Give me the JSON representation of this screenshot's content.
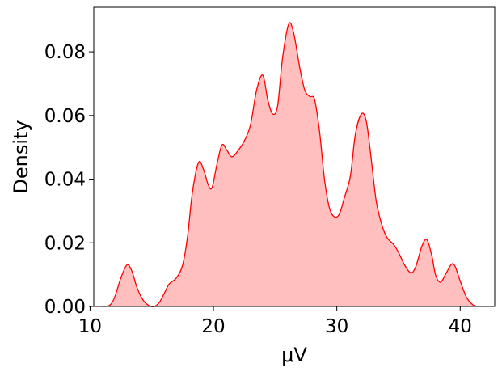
{
  "chart_data": {
    "type": "area",
    "xlabel": "μV",
    "ylabel": "Density",
    "xlim": [
      10.3,
      42.8
    ],
    "ylim": [
      0,
      0.094
    ],
    "x_ticks": [
      10,
      20,
      30,
      40
    ],
    "y_ticks": [
      0.0,
      0.02,
      0.04,
      0.06,
      0.08
    ],
    "x_tick_labels": [
      "10",
      "20",
      "30",
      "40"
    ],
    "y_tick_labels": [
      "0.00",
      "0.02",
      "0.04",
      "0.06",
      "0.08"
    ],
    "grid": false,
    "series": [
      {
        "color": "#ff0000",
        "fill": "#ffbfbf",
        "points": [
          [
            11.0,
            0.0
          ],
          [
            11.6,
            0.0004
          ],
          [
            12.0,
            0.003
          ],
          [
            12.5,
            0.009
          ],
          [
            13.0,
            0.0131
          ],
          [
            13.4,
            0.011
          ],
          [
            13.8,
            0.006
          ],
          [
            14.3,
            0.002
          ],
          [
            14.8,
            0.0002
          ],
          [
            15.2,
            0.0
          ],
          [
            15.6,
            0.0012
          ],
          [
            16.0,
            0.004
          ],
          [
            16.4,
            0.007
          ],
          [
            17.0,
            0.009
          ],
          [
            17.5,
            0.013
          ],
          [
            17.9,
            0.022
          ],
          [
            18.3,
            0.036
          ],
          [
            18.8,
            0.0453
          ],
          [
            19.2,
            0.043
          ],
          [
            19.6,
            0.038
          ],
          [
            19.9,
            0.0375
          ],
          [
            20.3,
            0.045
          ],
          [
            20.7,
            0.0508
          ],
          [
            21.1,
            0.049
          ],
          [
            21.5,
            0.047
          ],
          [
            22.0,
            0.049
          ],
          [
            22.5,
            0.052
          ],
          [
            23.0,
            0.057
          ],
          [
            23.5,
            0.068
          ],
          [
            24.0,
            0.0727
          ],
          [
            24.4,
            0.065
          ],
          [
            24.8,
            0.0605
          ],
          [
            25.2,
            0.063
          ],
          [
            25.6,
            0.078
          ],
          [
            26.1,
            0.0887
          ],
          [
            26.5,
            0.086
          ],
          [
            27.0,
            0.075
          ],
          [
            27.4,
            0.068
          ],
          [
            27.8,
            0.066
          ],
          [
            28.2,
            0.065
          ],
          [
            28.6,
            0.055
          ],
          [
            29.0,
            0.04
          ],
          [
            29.4,
            0.031
          ],
          [
            29.8,
            0.0282
          ],
          [
            30.2,
            0.029
          ],
          [
            30.6,
            0.034
          ],
          [
            31.1,
            0.041
          ],
          [
            31.5,
            0.054
          ],
          [
            32.0,
            0.0605
          ],
          [
            32.4,
            0.058
          ],
          [
            32.8,
            0.046
          ],
          [
            33.2,
            0.033
          ],
          [
            33.7,
            0.025
          ],
          [
            34.1,
            0.0215
          ],
          [
            34.6,
            0.0195
          ],
          [
            35.0,
            0.017
          ],
          [
            35.5,
            0.013
          ],
          [
            36.0,
            0.0106
          ],
          [
            36.4,
            0.0125
          ],
          [
            36.9,
            0.019
          ],
          [
            37.3,
            0.021
          ],
          [
            37.7,
            0.016
          ],
          [
            38.0,
            0.01
          ],
          [
            38.4,
            0.0076
          ],
          [
            38.8,
            0.01
          ],
          [
            39.3,
            0.0133
          ],
          [
            39.6,
            0.0125
          ],
          [
            40.0,
            0.008
          ],
          [
            40.5,
            0.003
          ],
          [
            41.0,
            0.0006
          ],
          [
            41.4,
            0.0
          ]
        ]
      }
    ]
  }
}
